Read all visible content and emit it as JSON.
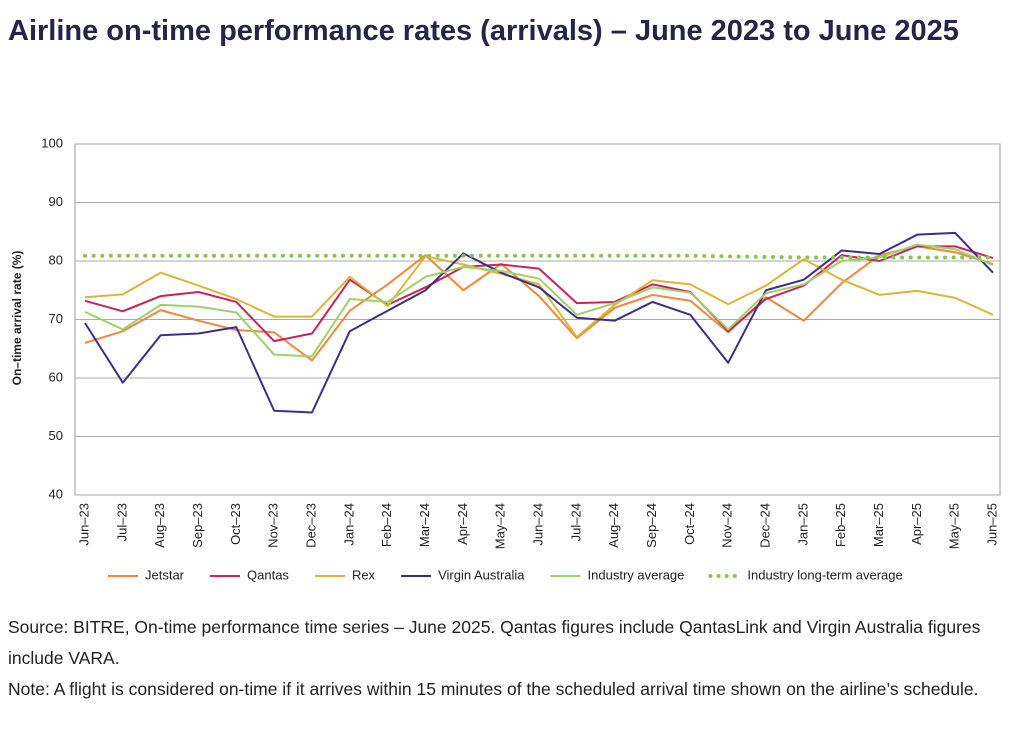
{
  "chart_data": {
    "type": "line",
    "title": "Airline on-time performance rates (arrivals) – June 2023 to June 2025",
    "y_label": "On–time arrival rate (%)",
    "categories": [
      "Jun–23",
      "Jul–23",
      "Aug–23",
      "Sep–23",
      "Oct–23",
      "Nov–23",
      "Dec–23",
      "Jan–24",
      "Feb–24",
      "Mar–24",
      "Apr–24",
      "May–24",
      "Jun–24",
      "Jul–24",
      "Aug–24",
      "Sep–24",
      "Oct–24",
      "Nov–24",
      "Dec–24",
      "Jan–25",
      "Feb–25",
      "Mar–25",
      "Apr–25",
      "May–25",
      "Jun–25"
    ],
    "series": [
      {
        "name": "Jetstar",
        "color": "#f0873a",
        "values": [
          66,
          68,
          71.6,
          69.8,
          68.2,
          67.8,
          63,
          71.5,
          76,
          81,
          75,
          79.5,
          74,
          66.8,
          72,
          74.2,
          73.2,
          67.8,
          73.8,
          69.8,
          76.2,
          81,
          82.5,
          81.5,
          79.5
        ]
      },
      {
        "name": "Qantas",
        "color": "#c8245a",
        "values": [
          73.2,
          71.4,
          74,
          74.7,
          73,
          66.3,
          67.6,
          76.8,
          72.5,
          75.5,
          79,
          79.4,
          78.7,
          72.8,
          73,
          76,
          74.7,
          68,
          73.5,
          75.8,
          81,
          80,
          82.5,
          82.5,
          80.5
        ]
      },
      {
        "name": "Rex",
        "color": "#d9b637",
        "values": [
          73.8,
          74.3,
          78,
          75.8,
          73.5,
          70.5,
          70.5,
          77.3,
          72.3,
          80.8,
          79.4,
          77.8,
          76,
          67,
          72.5,
          76.7,
          76,
          72.6,
          75.8,
          80.3,
          76.8,
          74.2,
          74.9,
          73.7,
          70.8
        ]
      },
      {
        "name": "Virgin Australia",
        "color": "#3d2e88",
        "values": [
          69.4,
          59.2,
          67.3,
          67.6,
          68.7,
          54.4,
          54.1,
          68,
          71.5,
          75,
          81.3,
          78,
          75.5,
          70.3,
          69.8,
          73,
          70.8,
          62.6,
          75,
          76.8,
          81.8,
          81.2,
          84.5,
          84.8,
          78
        ]
      },
      {
        "name": "Industry average",
        "color": "#9dd16b",
        "values": [
          71.3,
          68.3,
          72.5,
          72.2,
          71.2,
          64,
          63.7,
          73.5,
          73,
          77.3,
          79,
          78.3,
          77,
          70.8,
          72.8,
          75.5,
          74.6,
          68.3,
          74.5,
          76,
          80,
          80.6,
          82.8,
          82,
          79.3
        ]
      },
      {
        "name": "Industry long-term average",
        "color": "#8cc44d",
        "dotted": true,
        "values": [
          80.9,
          80.9,
          80.9,
          80.9,
          80.9,
          80.9,
          80.9,
          80.9,
          80.9,
          80.9,
          80.9,
          80.9,
          80.9,
          80.9,
          80.9,
          80.9,
          80.9,
          80.8,
          80.7,
          80.6,
          80.6,
          80.6,
          80.6,
          80.6,
          80.6
        ]
      }
    ],
    "ylim": [
      40,
      100
    ],
    "yticks": [
      40,
      50,
      60,
      70,
      80,
      90,
      100
    ],
    "grid": true,
    "legend": "bottom"
  },
  "notes": [
    "Source: BITRE, On-time performance time series – June 2025. Qantas figures include QantasLink and Virgin Australia figures include VARA.",
    "Note: A flight is considered on-time if it arrives within 15 minutes of the scheduled arrival time shown on the airline’s schedule."
  ]
}
